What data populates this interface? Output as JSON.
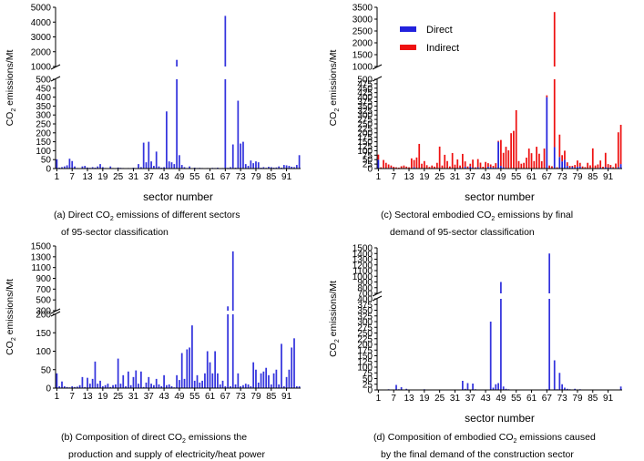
{
  "chart_data": [
    {
      "id": "a",
      "type": "bar",
      "x_tick_labels": [
        "1",
        "7",
        "13",
        "19",
        "25",
        "31",
        "37",
        "43",
        "49",
        "55",
        "61",
        "67",
        "73",
        "79",
        "85",
        "91"
      ],
      "xlabel": "sector number",
      "ylabel": "CO2 emissions/Mt",
      "y_axis_break": {
        "lower_ticks": [
          0,
          50,
          100,
          150,
          200,
          250,
          300,
          350,
          400,
          450,
          500
        ],
        "upper_ticks": [
          1000,
          2000,
          3000,
          4000,
          5000
        ]
      },
      "caption": [
        "(a) Direct CO2 emissions of different sectors",
        "of 95-sector classification"
      ],
      "series": [
        {
          "name": "Direct",
          "color": "#3333dd",
          "values": [
            52,
            5,
            8,
            12,
            18,
            55,
            42,
            12,
            3,
            2,
            12,
            15,
            6,
            4,
            8,
            5,
            12,
            25,
            8,
            3,
            2,
            12,
            3,
            2,
            6,
            4,
            3,
            2,
            3,
            2,
            5,
            3,
            25,
            8,
            145,
            35,
            150,
            40,
            15,
            95,
            12,
            5,
            8,
            320,
            40,
            35,
            25,
            1450,
            75,
            20,
            8,
            3,
            12,
            2,
            5,
            3,
            4,
            3,
            2,
            3,
            2,
            4,
            3,
            5,
            2,
            3,
            4420,
            4,
            8,
            135,
            5,
            380,
            140,
            150,
            25,
            15,
            45,
            30,
            40,
            35,
            5,
            8,
            4,
            10,
            8,
            5,
            6,
            12,
            5,
            20,
            18,
            15,
            10,
            8,
            20,
            75
          ]
        }
      ]
    },
    {
      "id": "c",
      "type": "bar",
      "stacked": true,
      "x_tick_labels": [
        "1",
        "7",
        "13",
        "19",
        "25",
        "31",
        "37",
        "43",
        "49",
        "55",
        "61",
        "67",
        "73",
        "79",
        "85",
        "91"
      ],
      "xlabel": "sector number",
      "ylabel": "CO2 emissions/Mt",
      "legend": {
        "position": "top-left",
        "entries": [
          "Direct",
          "Indirect"
        ]
      },
      "y_axis_break": {
        "lower_ticks": [
          0,
          25,
          50,
          75,
          100,
          125,
          150,
          175,
          200,
          225,
          250,
          275,
          300,
          325,
          350,
          375,
          400,
          425,
          450,
          475,
          500
        ],
        "upper_ticks": [
          1000,
          1500,
          2000,
          2500,
          3000,
          3500
        ]
      },
      "caption": [
        "(c) Sectoral embodied CO2 emissions by final",
        "demand of 95-sector classification"
      ],
      "series": [
        {
          "name": "Direct",
          "color": "#2222dd",
          "values": [
            50,
            2,
            3,
            2,
            3,
            5,
            2,
            2,
            2,
            1,
            2,
            3,
            2,
            2,
            8,
            2,
            3,
            2,
            2,
            1,
            1,
            2,
            1,
            2,
            3,
            2,
            2,
            2,
            2,
            2,
            2,
            1,
            5,
            2,
            10,
            2,
            12,
            5,
            2,
            8,
            3,
            2,
            2,
            10,
            8,
            5,
            5,
            150,
            15,
            8,
            2,
            2,
            3,
            1,
            2,
            2,
            2,
            2,
            1,
            2,
            1,
            2,
            2,
            3,
            1,
            2,
            400,
            2,
            3,
            120,
            2,
            65,
            40,
            50,
            15,
            5,
            10,
            5,
            10,
            12,
            2,
            3,
            2,
            3,
            3,
            2,
            3,
            5,
            2,
            8,
            5,
            5,
            3,
            3,
            8,
            25
          ]
        },
        {
          "name": "Indirect",
          "color": "#ee1111",
          "values": [
            28,
            5,
            45,
            30,
            20,
            12,
            8,
            5,
            3,
            12,
            15,
            8,
            5,
            55,
            40,
            60,
            135,
            25,
            40,
            18,
            8,
            15,
            10,
            30,
            120,
            15,
            75,
            40,
            10,
            85,
            20,
            50,
            12,
            80,
            30,
            10,
            15,
            45,
            5,
            45,
            30,
            8,
            35,
            20,
            15,
            10,
            25,
            5,
            145,
            80,
            120,
            100,
            195,
            210,
            325,
            40,
            25,
            30,
            60,
            110,
            85,
            40,
            120,
            80,
            40,
            110,
            10,
            15,
            10,
            3180,
            5,
            125,
            35,
            50,
            20,
            10,
            5,
            15,
            35,
            20,
            10,
            5,
            30,
            15,
            110,
            15,
            20,
            40,
            8,
            80,
            20,
            15,
            5,
            25,
            195,
            220
          ]
        }
      ]
    },
    {
      "id": "b",
      "type": "bar",
      "x_tick_labels": [
        "1",
        "7",
        "13",
        "19",
        "25",
        "31",
        "37",
        "43",
        "49",
        "55",
        "61",
        "67",
        "73",
        "79",
        "85",
        "91"
      ],
      "ylabel": "CO2 emissions/Mt",
      "y_axis_break": {
        "lower_ticks": [
          0,
          50,
          100,
          150,
          200
        ],
        "upper_ticks": [
          300,
          500,
          700,
          900,
          1100,
          1300,
          1500
        ]
      },
      "caption": [
        "(b) Composition of direct CO2 emissions the",
        "production and supply of electricity/heat power"
      ],
      "series": [
        {
          "name": "Direct",
          "color": "#3333dd",
          "values": [
            40,
            5,
            18,
            5,
            3,
            2,
            5,
            3,
            4,
            8,
            30,
            3,
            28,
            12,
            25,
            72,
            12,
            20,
            5,
            8,
            12,
            3,
            8,
            10,
            80,
            12,
            35,
            5,
            45,
            8,
            30,
            48,
            12,
            45,
            3,
            15,
            30,
            12,
            8,
            25,
            10,
            5,
            35,
            8,
            10,
            5,
            2,
            35,
            22,
            95,
            25,
            105,
            110,
            170,
            20,
            35,
            15,
            20,
            40,
            100,
            70,
            40,
            100,
            40,
            10,
            20,
            5,
            380,
            5,
            1400,
            10,
            40,
            5,
            8,
            12,
            10,
            5,
            70,
            50,
            15,
            40,
            45,
            55,
            35,
            10,
            40,
            50,
            10,
            120,
            5,
            30,
            50,
            110,
            135,
            5,
            5
          ]
        }
      ]
    },
    {
      "id": "d",
      "type": "bar",
      "x_tick_labels": [
        "1",
        "7",
        "13",
        "19",
        "25",
        "31",
        "37",
        "43",
        "49",
        "55",
        "61",
        "67",
        "73",
        "79",
        "85",
        "91"
      ],
      "xlabel": "sector number",
      "ylabel": "CO2 emissions/Mt",
      "y_axis_break": {
        "lower_ticks": [
          0,
          25,
          50,
          75,
          100,
          125,
          150,
          175,
          200,
          225,
          250,
          275,
          300,
          325,
          350,
          375,
          400
        ],
        "upper_ticks": [
          700,
          800,
          900,
          1000,
          1100,
          1200,
          1300,
          1400,
          1500
        ]
      },
      "caption": [
        "(d) Composition of embodied CO2 emissions caused",
        "by the final demand of the construction sector"
      ],
      "series": [
        {
          "name": "Direct",
          "color": "#3333dd",
          "values": [
            2,
            1,
            2,
            1,
            3,
            1,
            2,
            22,
            3,
            12,
            2,
            5,
            1,
            2,
            1,
            2,
            1,
            2,
            3,
            2,
            1,
            2,
            1,
            2,
            1,
            2,
            1,
            2,
            1,
            2,
            1,
            2,
            1,
            40,
            5,
            30,
            2,
            28,
            3,
            1,
            2,
            1,
            2,
            2,
            300,
            10,
            25,
            30,
            900,
            15,
            5,
            3,
            1,
            2,
            1,
            2,
            1,
            2,
            1,
            2,
            1,
            2,
            1,
            2,
            1,
            2,
            3,
            1400,
            2,
            130,
            3,
            75,
            25,
            10,
            5,
            3,
            2,
            5,
            2,
            3,
            2,
            1,
            2,
            1,
            2,
            1,
            2,
            1,
            2,
            1,
            2,
            1,
            2,
            1,
            2,
            15
          ]
        }
      ]
    }
  ]
}
